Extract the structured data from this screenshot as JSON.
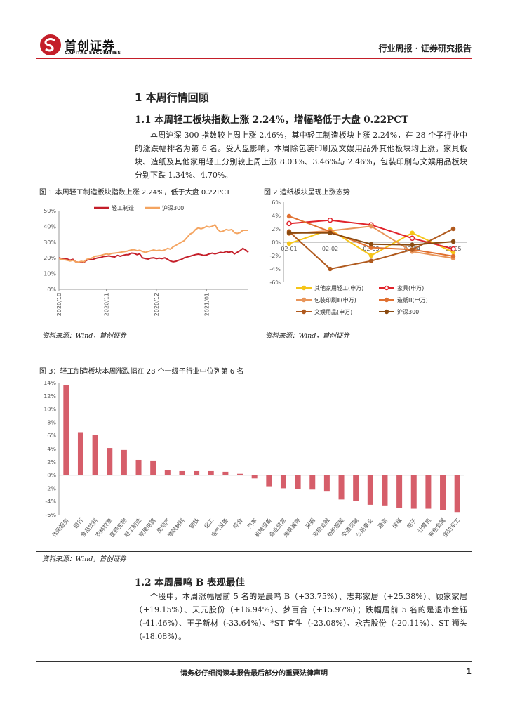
{
  "header": {
    "logo_cn": "首创证券",
    "logo_en": "CAPITAL SECURITIES",
    "report_type": "行业周报 · 证券研究报告",
    "brand_color": "#c41e29"
  },
  "section": {
    "title": "1 本周行情回顾",
    "sub1_title": "1.1 本周轻工板块指数上涨 2.24%，增幅略低于大盘 0.22PCT",
    "sub1_body": "本周沪深 300 指数较上周上涨 2.46%，其中轻工制造板块上涨 2.24%，在 28 个子行业中的涨跌幅排名为第 6 名。受大盘影响，本周除包装印刷及文娱用品外其他板块均上涨，家具板块、造纸及其他家用轻工分别较上周上涨 8.03%、3.46%与 2.46%，包装印刷与文娱用品板块分别下跌 1.34%、4.70%。",
    "sub2_title": "1.2 本周晨鸣 B 表现最佳",
    "sub2_body": "个股中，本周涨幅居前 5 名的是晨鸣 B（+33.75%）、志邦家居（+25.38%）、顾家家居（+19.15%）、天元股份（+16.94%）、梦百合（+15.97%）；跌幅居前 5 名的是退市金钰（-41.46%）、王子新材（-33.64%）、*ST 宜生（-23.08%）、永吉股份（-20.11%）、ST 狮头（-18.08%）。"
  },
  "figures": {
    "fig1_title": "图 1 本周轻工制造板块指数上涨 2.24%，低于大盘 0.22PCT",
    "fig2_title": "图 2 造纸板块呈现上涨态势",
    "fig3_title": "图 3：轻工制造板块本周涨跌幅在 28 个一级子行业中位列第 6 名",
    "source": "资料来源：Wind，首创证券"
  },
  "chart_data": [
    {
      "type": "line",
      "series": [
        {
          "name": "轻工制造",
          "color": "#c41e29",
          "values": [
            20,
            19.5,
            19.5,
            19.2,
            18.5,
            19,
            17.5,
            17.2,
            17.6,
            17.2,
            18.5,
            19,
            18.8,
            19.5,
            20,
            20.2,
            20.8,
            21,
            21.2,
            20.8,
            20.5,
            21.5,
            21,
            21.5,
            22,
            22,
            23,
            22.8,
            22,
            22.5,
            20,
            19.5,
            19.2,
            19.8,
            20,
            19.5,
            19.8,
            19.5,
            20,
            19,
            18,
            17.5,
            17.8,
            18.5,
            19,
            20,
            20.5,
            21,
            21.5,
            22,
            22.3,
            22,
            21.5,
            21.8,
            22.5,
            23,
            22.5,
            23,
            23.5,
            23.2,
            24,
            23.5,
            24,
            22.5,
            23.5,
            24.5,
            26,
            25,
            23.5
          ]
        },
        {
          "name": "沪深300",
          "color": "#f4a460",
          "values": [
            19.5,
            19,
            18.8,
            18.5,
            18,
            18.5,
            17.5,
            17.2,
            17.8,
            17.5,
            19,
            19.5,
            20,
            21,
            21.2,
            21.5,
            22,
            22.5,
            22.2,
            22.8,
            23,
            23.2,
            23.5,
            23.8,
            24,
            24.5,
            25,
            25.2,
            24.5,
            24.8,
            24,
            23.5,
            24,
            24.5,
            25,
            24.5,
            24.8,
            24.5,
            25,
            26,
            25.5,
            27,
            28,
            29,
            30,
            31,
            33,
            35,
            36,
            38,
            39,
            38.5,
            39,
            40,
            39.5,
            40,
            41,
            38,
            36.5,
            37,
            38,
            37.5,
            38,
            36,
            35.5,
            36,
            37.5,
            37.5,
            37.5
          ]
        }
      ],
      "x_ticks": [
        "2020/10",
        "2020/11",
        "2020/12",
        "2021/01"
      ],
      "ylim": [
        0,
        50
      ],
      "y_ticks": [
        "0%",
        "10%",
        "20%",
        "30%",
        "40%",
        "50%"
      ],
      "legend": "top"
    },
    {
      "type": "line",
      "categories": [
        "02-01",
        "02-02",
        "02-03",
        "02-04",
        "02-05"
      ],
      "ylim": [
        -6,
        6
      ],
      "y_ticks": [
        "-6%",
        "-4%",
        "-2%",
        "0%",
        "2%",
        "4%",
        "6%"
      ],
      "series": [
        {
          "name": "其他家用轻工(申万)",
          "color": "#f5c518",
          "values": [
            -0.2,
            1.9,
            -2.0,
            1.4,
            -1.5
          ]
        },
        {
          "name": "家具(申万)",
          "color": "#e0222a",
          "values": [
            2.8,
            3.3,
            2.6,
            0.6,
            -1.0
          ]
        },
        {
          "name": "包装印刷Ⅲ(申万)",
          "color": "#e8955a",
          "values": [
            1.3,
            1.7,
            2.4,
            -1.4,
            -2.4
          ]
        },
        {
          "name": "造纸Ⅲ(申万)",
          "color": "#e07030",
          "values": [
            3.9,
            1.6,
            -0.8,
            -1.1,
            -2.1
          ]
        },
        {
          "name": "文娱用品(申万)",
          "color": "#b05a1e",
          "values": [
            1.6,
            -4.0,
            -2.8,
            -1.1,
            2.0
          ]
        },
        {
          "name": "沪深300",
          "color": "#8a4a10",
          "values": [
            1.4,
            1.4,
            -0.3,
            -0.4,
            0.1
          ]
        }
      ]
    },
    {
      "type": "bar",
      "color": "#d65e6a",
      "ylim": [
        -6,
        14
      ],
      "y_ticks": [
        "-6%",
        "-4%",
        "-2%",
        "0%",
        "2%",
        "4%",
        "6%",
        "8%",
        "10%",
        "12%",
        "14%"
      ],
      "categories": [
        "休闲服务",
        "银行",
        "食品饮料",
        "农林牧渔",
        "医药生物",
        "轻工制造",
        "家用电器",
        "房地产",
        "建筑材料",
        "钢铁",
        "化工",
        "电气设备",
        "综合",
        "汽车",
        "机械设备",
        "商业贸易",
        "建筑装饰",
        "采掘",
        "非银金融",
        "纺织服装",
        "交通运输",
        "公用事业",
        "通信",
        "传媒",
        "电子",
        "计算机",
        "有色金属",
        "国防军工"
      ],
      "values": [
        13.6,
        6.5,
        6.1,
        4.1,
        3.8,
        2.3,
        2.2,
        0.8,
        0.6,
        0.6,
        0.6,
        0.5,
        0.2,
        -0.5,
        -1.7,
        -2.0,
        -2.1,
        -2.2,
        -2.4,
        -3.7,
        -3.9,
        -4.5,
        -4.6,
        -5.0,
        -5.1,
        -5.1,
        -5.3,
        -5.6
      ]
    }
  ],
  "footer": {
    "note": "请务必仔细阅读本报告最后部分的重要法律声明",
    "page": "1"
  }
}
